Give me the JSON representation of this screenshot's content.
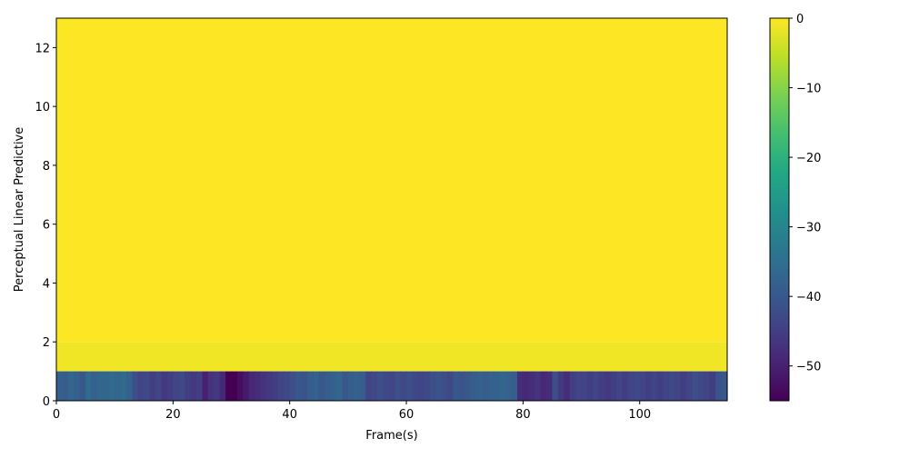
{
  "chart_data": {
    "type": "heatmap",
    "title": "",
    "xlabel": "Frame(s)",
    "ylabel": "Perceptual Linear Predictive",
    "xlim": [
      0,
      115
    ],
    "ylim": [
      0,
      13
    ],
    "x_ticks": [
      0,
      20,
      40,
      60,
      80,
      100
    ],
    "y_ticks": [
      0,
      2,
      4,
      6,
      8,
      10,
      12
    ],
    "colorscale": "viridis",
    "color_range": [
      -55,
      0
    ],
    "colorbar_ticks": [
      0,
      -10,
      -20,
      -30,
      -40,
      -50
    ],
    "colorbar_tick_labels": [
      "0",
      "−10",
      "−20",
      "−30",
      "−40",
      "−50"
    ],
    "rows": [
      {
        "y_range": [
          1,
          2
        ],
        "value": -1
      },
      {
        "y_range": [
          2,
          13
        ],
        "value": 0
      }
    ],
    "row0_y_range": [
      0,
      1
    ],
    "row0_values": [
      -38,
      -39,
      -37,
      -38,
      -40,
      -36,
      -38,
      -37,
      -37,
      -36,
      -37,
      -36,
      -38,
      -42,
      -44,
      -43,
      -45,
      -44,
      -46,
      -45,
      -44,
      -43,
      -45,
      -46,
      -45,
      -50,
      -47,
      -46,
      -49,
      -55,
      -55,
      -53,
      -51,
      -49,
      -48,
      -47,
      -46,
      -45,
      -44,
      -43,
      -42,
      -40,
      -41,
      -39,
      -38,
      -40,
      -39,
      -38,
      -37,
      -40,
      -39,
      -38,
      -39,
      -44,
      -43,
      -42,
      -43,
      -44,
      -42,
      -43,
      -42,
      -43,
      -44,
      -43,
      -42,
      -41,
      -42,
      -43,
      -40,
      -41,
      -40,
      -39,
      -38,
      -39,
      -38,
      -38,
      -37,
      -38,
      -39,
      -48,
      -49,
      -48,
      -47,
      -49,
      -48,
      -42,
      -46,
      -48,
      -45,
      -44,
      -44,
      -45,
      -44,
      -45,
      -46,
      -45,
      -44,
      -45,
      -44,
      -43,
      -44,
      -45,
      -44,
      -45,
      -44,
      -43,
      -44,
      -45,
      -44,
      -42,
      -43,
      -44,
      -45,
      -41,
      -40
    ]
  }
}
